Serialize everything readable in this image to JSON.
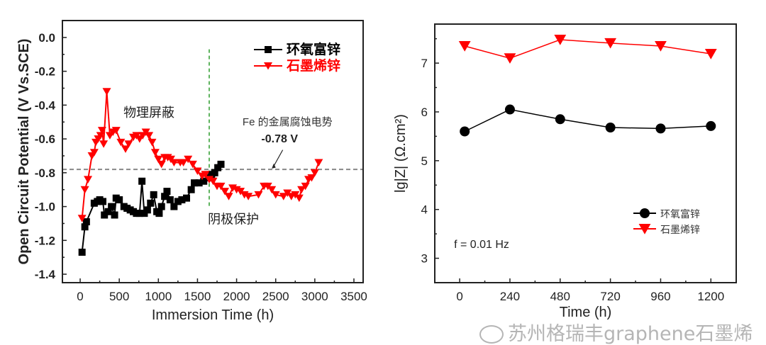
{
  "chart_data": [
    {
      "type": "line",
      "xlabel": "Immersion Time (h)",
      "ylabel": "Open Circuit Potential (V Vs.SCE)",
      "xlim": [
        -227,
        3618
      ],
      "ylim": [
        -1.45,
        0.1
      ],
      "xticks": [
        0,
        500,
        1000,
        1500,
        2000,
        2500,
        3000,
        3500
      ],
      "yticks": [
        0.0,
        -0.2,
        -0.4,
        -0.6,
        -0.8,
        -1.0,
        -1.2,
        -1.4
      ],
      "ytick_labels": [
        "0.0",
        "-0.2",
        "-0.4",
        "-0.6",
        "-0.8",
        "-1.0",
        "-1.2",
        "-1.4"
      ],
      "grid": false,
      "legend_position": "top-right",
      "series": [
        {
          "name": "环氧富锌",
          "color": "#000000",
          "marker": "square",
          "x": [
            24,
            60,
            80,
            180,
            220,
            250,
            290,
            310,
            360,
            400,
            440,
            460,
            500,
            560,
            600,
            640,
            680,
            720,
            760,
            790,
            820,
            860,
            900,
            940,
            980,
            1010,
            1040,
            1080,
            1110,
            1150,
            1200,
            1250,
            1300,
            1360,
            1420,
            1460,
            1520,
            1580,
            1640,
            1680,
            1720,
            1760,
            1800
          ],
          "y": [
            -1.27,
            -1.12,
            -1.09,
            -0.98,
            -0.97,
            -0.96,
            -0.97,
            -1.05,
            -1.03,
            -1.0,
            -1.05,
            -0.95,
            -0.96,
            -1.0,
            -1.01,
            -1.02,
            -1.03,
            -1.04,
            -1.04,
            -0.85,
            -1.04,
            -1.02,
            -0.98,
            -0.93,
            -1.03,
            -1.04,
            -1.0,
            -0.94,
            -0.91,
            -0.96,
            -1.0,
            -0.97,
            -0.96,
            -0.95,
            -0.9,
            -0.86,
            -0.86,
            -0.85,
            -0.83,
            -0.81,
            -0.8,
            -0.77,
            -0.75
          ]
        },
        {
          "name": "石墨烯锌",
          "color": "#ff0000",
          "marker": "triangle-down",
          "x": [
            24,
            60,
            100,
            150,
            180,
            200,
            230,
            260,
            280,
            300,
            340,
            380,
            420,
            460,
            520,
            580,
            620,
            680,
            720,
            760,
            800,
            840,
            880,
            920,
            960,
            1000,
            1040,
            1080,
            1120,
            1160,
            1200,
            1280,
            1320,
            1380,
            1440,
            1500,
            1560,
            1600,
            1650,
            1700,
            1750,
            1800,
            1850,
            1900,
            1950,
            2000,
            2050,
            2100,
            2150,
            2280,
            2350,
            2400,
            2450,
            2500,
            2600,
            2650,
            2700,
            2750,
            2800,
            2830,
            2880,
            2920,
            2960,
            3000,
            3050
          ],
          "y": [
            -1.07,
            -0.9,
            -0.84,
            -0.7,
            -0.68,
            -0.62,
            -0.6,
            -0.58,
            -0.55,
            -0.63,
            -0.32,
            -0.58,
            -0.56,
            -0.55,
            -0.62,
            -0.66,
            -0.63,
            -0.59,
            -0.58,
            -0.6,
            -0.58,
            -0.56,
            -0.58,
            -0.62,
            -0.68,
            -0.72,
            -0.75,
            -0.71,
            -0.71,
            -0.72,
            -0.74,
            -0.74,
            -0.74,
            -0.72,
            -0.75,
            -0.79,
            -0.82,
            -0.81,
            -0.84,
            -0.85,
            -0.88,
            -0.88,
            -0.91,
            -0.94,
            -0.89,
            -0.9,
            -0.91,
            -0.93,
            -0.94,
            -0.93,
            -0.88,
            -0.88,
            -0.9,
            -0.93,
            -0.94,
            -0.92,
            -0.94,
            -0.93,
            -0.95,
            -0.9,
            -0.88,
            -0.84,
            -0.83,
            -0.8,
            -0.74
          ]
        }
      ],
      "reference_lines": {
        "horizontal_y": -0.78,
        "vertical_x": 1650,
        "vertical_range": [
          -1.0,
          -0.07
        ]
      },
      "annotations": {
        "shielding": {
          "text": "物理屏蔽",
          "x": 880,
          "y": -0.47
        },
        "cathodic": {
          "text": "阴极保护",
          "x": 1960,
          "y": -1.1
        },
        "fe_potential": {
          "text": "Fe 的金属腐蚀电势",
          "x": 2650,
          "y": -0.52
        },
        "value": {
          "text": "-0.78 V",
          "x": 2550,
          "y": -0.62
        }
      }
    },
    {
      "type": "line",
      "xlabel": "Time (h)",
      "ylabel": "lg|Z| (Ω.cm²)",
      "xlim": [
        -119,
        1321
      ],
      "ylim": [
        2.5,
        7.8
      ],
      "xticks": [
        0,
        240,
        480,
        720,
        960,
        1200
      ],
      "yticks": [
        3,
        4,
        5,
        6,
        7
      ],
      "grid": false,
      "legend_position": "bottom-right",
      "series": [
        {
          "name": "环氧富锌",
          "color": "#000000",
          "marker": "circle",
          "x": [
            24,
            240,
            480,
            720,
            960,
            1200
          ],
          "y": [
            5.6,
            6.05,
            5.85,
            5.68,
            5.66,
            5.71
          ]
        },
        {
          "name": "石墨烯锌",
          "color": "#ff0000",
          "marker": "triangle-down",
          "x": [
            24,
            240,
            480,
            720,
            960,
            1200
          ],
          "y": [
            7.35,
            7.1,
            7.48,
            7.41,
            7.35,
            7.19
          ]
        }
      ],
      "annotations": {
        "freq": {
          "text": "f = 0.01 Hz",
          "x": 0,
          "y": 3.3
        }
      }
    }
  ],
  "watermark": "苏州格瑞丰graphene石墨烯"
}
